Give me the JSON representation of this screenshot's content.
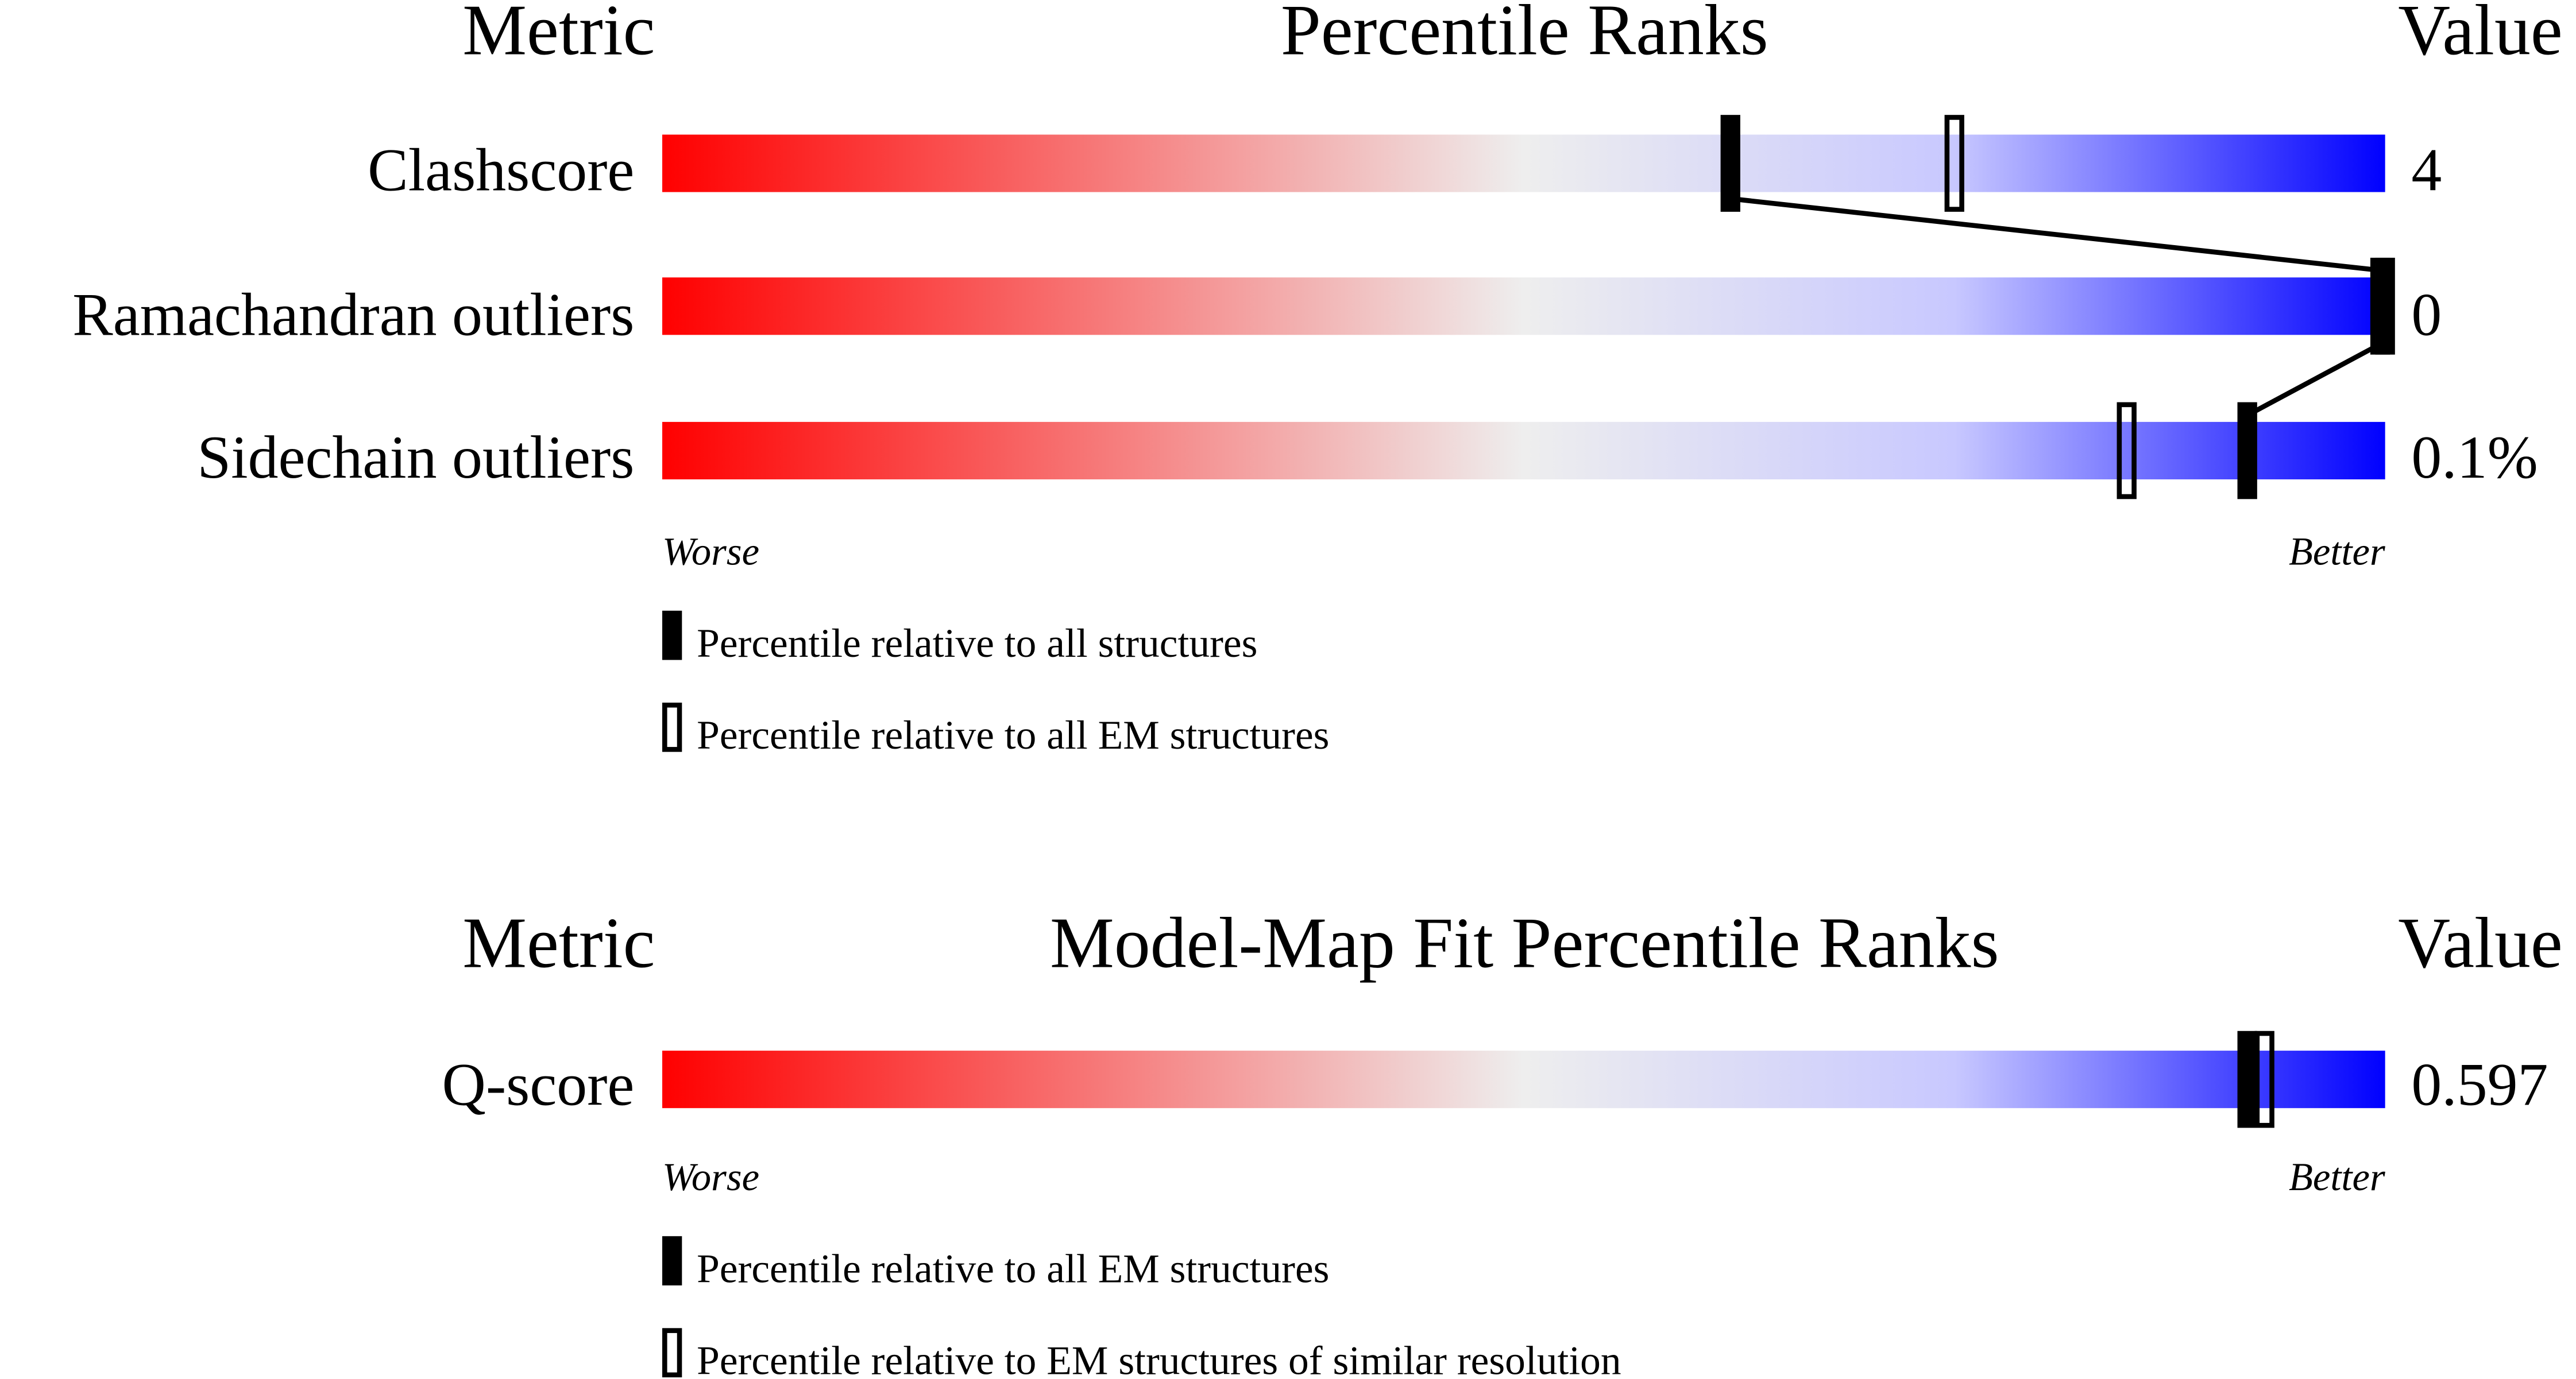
{
  "chart_data": [
    {
      "type": "percentile-bar",
      "headers": {
        "metric": "Metric",
        "title": "Percentile Ranks",
        "value": "Value"
      },
      "scale": {
        "min_label": "Worse",
        "max_label": "Better",
        "range": [
          0,
          100
        ]
      },
      "gradient_colors": [
        "#ff0000",
        "#eeeeee",
        "#0000ff"
      ],
      "rows": [
        {
          "metric": "Clashscore",
          "value": "4",
          "percentile_all": 62,
          "percentile_em": 75
        },
        {
          "metric": "Ramachandran outliers",
          "value": "0",
          "percentile_all": 100,
          "percentile_em": 100
        },
        {
          "metric": "Sidechain outliers",
          "value": "0.1%",
          "percentile_all": 92,
          "percentile_em": 85
        }
      ],
      "legend": [
        {
          "marker": "filled",
          "label": "Percentile relative to all structures"
        },
        {
          "marker": "hollow",
          "label": "Percentile relative to all EM structures"
        }
      ]
    },
    {
      "type": "percentile-bar",
      "headers": {
        "metric": "Metric",
        "title": "Model-Map Fit Percentile Ranks",
        "value": "Value"
      },
      "scale": {
        "min_label": "Worse",
        "max_label": "Better",
        "range": [
          0,
          100
        ]
      },
      "gradient_colors": [
        "#ff0000",
        "#eeeeee",
        "#0000ff"
      ],
      "rows": [
        {
          "metric": "Q-score",
          "value": "0.597",
          "percentile_all": 92,
          "percentile_em": 93
        }
      ],
      "legend": [
        {
          "marker": "filled",
          "label": "Percentile relative to all EM structures"
        },
        {
          "marker": "hollow",
          "label": "Percentile relative to EM structures of similar resolution"
        }
      ]
    }
  ]
}
